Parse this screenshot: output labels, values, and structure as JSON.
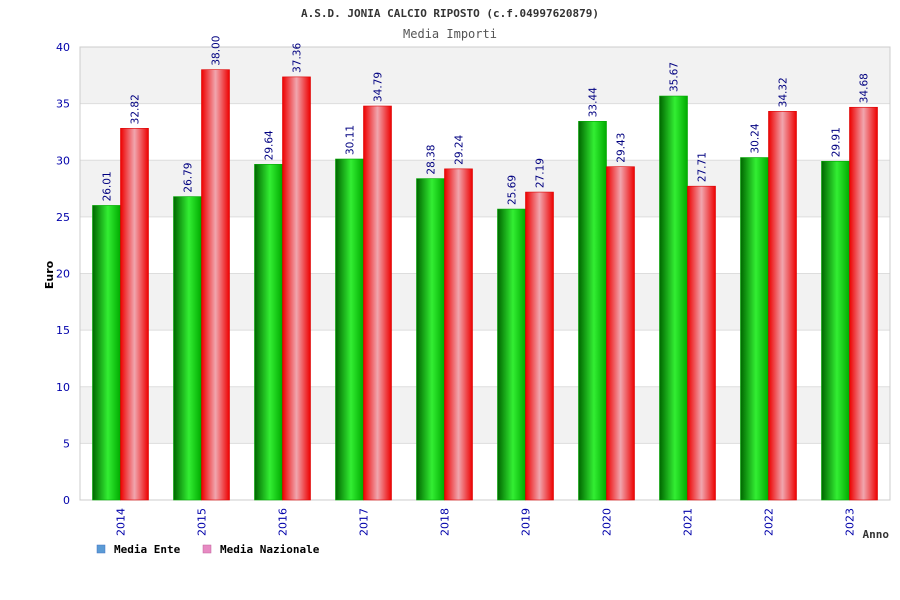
{
  "chart_data": {
    "type": "bar",
    "title": "A.S.D. JONIA CALCIO RIPOSTO (c.f.04997620879)",
    "subtitle": "Media Importi",
    "xlabel": "Anno",
    "ylabel": "Euro",
    "ylim": [
      0,
      40
    ],
    "yticks": [
      "0",
      "5",
      "10",
      "15",
      "20",
      "25",
      "30",
      "35",
      "40"
    ],
    "grid": true,
    "legend_placement": "bottom-left",
    "categories": [
      "2014",
      "2015",
      "2016",
      "2017",
      "2018",
      "2019",
      "2020",
      "2021",
      "2022",
      "2023"
    ],
    "series": [
      {
        "name": "Media Ente",
        "legend_color": "#5b9bd5",
        "values": [
          26.01,
          26.79,
          29.64,
          30.11,
          28.38,
          25.69,
          33.44,
          35.67,
          30.24,
          29.91
        ],
        "labels": [
          "26.01",
          "26.79",
          "29.64",
          "30.11",
          "28.38",
          "25.69",
          "33.44",
          "35.67",
          "30.24",
          "29.91"
        ]
      },
      {
        "name": "Media Nazionale",
        "legend_color": "#e78ac3",
        "values": [
          32.82,
          38.0,
          37.36,
          34.79,
          29.24,
          27.19,
          29.43,
          27.71,
          34.32,
          34.68
        ],
        "labels": [
          "32.82",
          "38.00",
          "37.36",
          "34.79",
          "29.24",
          "27.19",
          "29.43",
          "27.71",
          "34.32",
          "34.68"
        ]
      }
    ],
    "colors": {
      "green_dark": "#006600",
      "green_light": "#33ff33",
      "red_dark": "#ff0000",
      "red_light": "#f0a0a8",
      "axis_text": "#0000aa",
      "value_label": "#000080",
      "band": "#f2f2f2"
    }
  }
}
